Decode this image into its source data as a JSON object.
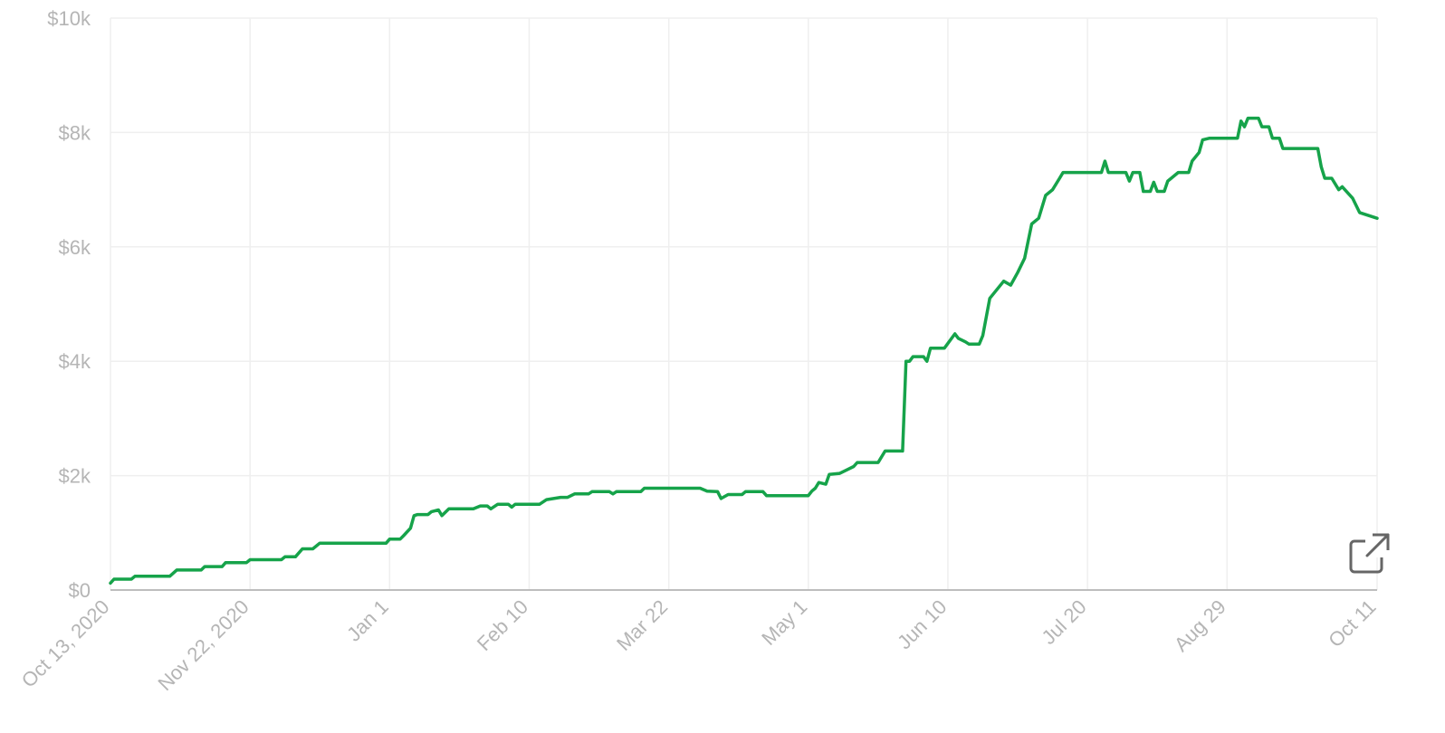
{
  "colors": {
    "line": "#16a34a",
    "grid": "#efefef",
    "axis": "#bdbdbd",
    "tick_text": "#b5b5b5",
    "icon": "#666666"
  },
  "icons": {
    "expand": "external-link-icon"
  },
  "chart_data": {
    "type": "line",
    "title": "",
    "xlabel": "",
    "ylabel": "",
    "x_domain": [
      "2020-10-13",
      "2021-10-11"
    ],
    "ylim": [
      0,
      10000
    ],
    "y_ticks": [
      {
        "value": 0,
        "label": "$0"
      },
      {
        "value": 2000,
        "label": "$2k"
      },
      {
        "value": 4000,
        "label": "$4k"
      },
      {
        "value": 6000,
        "label": "$6k"
      },
      {
        "value": 8000,
        "label": "$8k"
      },
      {
        "value": 10000,
        "label": "$10k"
      }
    ],
    "x_ticks": [
      {
        "date": "2020-10-13",
        "label": "Oct 13, 2020"
      },
      {
        "date": "2020-11-22",
        "label": "Nov 22, 2020"
      },
      {
        "date": "2021-01-01",
        "label": "Jan 1"
      },
      {
        "date": "2021-02-10",
        "label": "Feb 10"
      },
      {
        "date": "2021-03-22",
        "label": "Mar 22"
      },
      {
        "date": "2021-05-01",
        "label": "May 1"
      },
      {
        "date": "2021-06-10",
        "label": "Jun 10"
      },
      {
        "date": "2021-07-20",
        "label": "Jul 20"
      },
      {
        "date": "2021-08-29",
        "label": "Aug 29"
      },
      {
        "date": "2021-10-11",
        "label": "Oct 11"
      }
    ],
    "grid": true,
    "legend": "none",
    "series": [
      {
        "points": [
          [
            "2020-10-13",
            120
          ],
          [
            "2020-10-14",
            190
          ],
          [
            "2020-10-19",
            190
          ],
          [
            "2020-10-20",
            240
          ],
          [
            "2020-10-30",
            240
          ],
          [
            "2020-11-01",
            350
          ],
          [
            "2020-11-08",
            350
          ],
          [
            "2020-11-09",
            410
          ],
          [
            "2020-11-14",
            410
          ],
          [
            "2020-11-15",
            480
          ],
          [
            "2020-11-21",
            480
          ],
          [
            "2020-11-22",
            530
          ],
          [
            "2020-12-01",
            530
          ],
          [
            "2020-12-02",
            580
          ],
          [
            "2020-12-05",
            580
          ],
          [
            "2020-12-07",
            720
          ],
          [
            "2020-12-10",
            720
          ],
          [
            "2020-12-12",
            820
          ],
          [
            "2020-12-31",
            820
          ],
          [
            "2021-01-01",
            890
          ],
          [
            "2021-01-04",
            890
          ],
          [
            "2021-01-05",
            950
          ],
          [
            "2021-01-07",
            1080
          ],
          [
            "2021-01-08",
            1300
          ],
          [
            "2021-01-09",
            1320
          ],
          [
            "2021-01-12",
            1320
          ],
          [
            "2021-01-13",
            1370
          ],
          [
            "2021-01-15",
            1400
          ],
          [
            "2021-01-16",
            1300
          ],
          [
            "2021-01-18",
            1420
          ],
          [
            "2021-01-25",
            1420
          ],
          [
            "2021-01-27",
            1470
          ],
          [
            "2021-01-29",
            1470
          ],
          [
            "2021-01-30",
            1420
          ],
          [
            "2021-02-01",
            1500
          ],
          [
            "2021-02-04",
            1500
          ],
          [
            "2021-02-05",
            1450
          ],
          [
            "2021-02-06",
            1500
          ],
          [
            "2021-02-13",
            1500
          ],
          [
            "2021-02-15",
            1580
          ],
          [
            "2021-02-19",
            1620
          ],
          [
            "2021-02-21",
            1620
          ],
          [
            "2021-02-23",
            1680
          ],
          [
            "2021-02-27",
            1680
          ],
          [
            "2021-02-28",
            1720
          ],
          [
            "2021-03-05",
            1720
          ],
          [
            "2021-03-06",
            1680
          ],
          [
            "2021-03-07",
            1720
          ],
          [
            "2021-03-14",
            1720
          ],
          [
            "2021-03-15",
            1780
          ],
          [
            "2021-03-31",
            1780
          ],
          [
            "2021-04-02",
            1730
          ],
          [
            "2021-04-05",
            1720
          ],
          [
            "2021-04-06",
            1600
          ],
          [
            "2021-04-08",
            1670
          ],
          [
            "2021-04-12",
            1670
          ],
          [
            "2021-04-13",
            1720
          ],
          [
            "2021-04-18",
            1720
          ],
          [
            "2021-04-19",
            1650
          ],
          [
            "2021-05-01",
            1650
          ],
          [
            "2021-05-02",
            1730
          ],
          [
            "2021-05-03",
            1780
          ],
          [
            "2021-05-04",
            1880
          ],
          [
            "2021-05-06",
            1850
          ],
          [
            "2021-05-07",
            2020
          ],
          [
            "2021-05-10",
            2040
          ],
          [
            "2021-05-12",
            2100
          ],
          [
            "2021-05-14",
            2160
          ],
          [
            "2021-05-15",
            2230
          ],
          [
            "2021-05-21",
            2230
          ],
          [
            "2021-05-23",
            2430
          ],
          [
            "2021-05-28",
            2430
          ],
          [
            "2021-05-29",
            4000
          ],
          [
            "2021-05-30",
            4000
          ],
          [
            "2021-05-31",
            4080
          ],
          [
            "2021-06-03",
            4080
          ],
          [
            "2021-06-04",
            4000
          ],
          [
            "2021-06-05",
            4230
          ],
          [
            "2021-06-09",
            4230
          ],
          [
            "2021-06-12",
            4480
          ],
          [
            "2021-06-13",
            4400
          ],
          [
            "2021-06-15",
            4340
          ],
          [
            "2021-06-16",
            4300
          ],
          [
            "2021-06-19",
            4300
          ],
          [
            "2021-06-20",
            4450
          ],
          [
            "2021-06-22",
            5100
          ],
          [
            "2021-06-24",
            5250
          ],
          [
            "2021-06-26",
            5400
          ],
          [
            "2021-06-28",
            5330
          ],
          [
            "2021-06-30",
            5550
          ],
          [
            "2021-07-02",
            5800
          ],
          [
            "2021-07-04",
            6400
          ],
          [
            "2021-07-06",
            6500
          ],
          [
            "2021-07-08",
            6900
          ],
          [
            "2021-07-10",
            7000
          ],
          [
            "2021-07-12",
            7200
          ],
          [
            "2021-07-13",
            7300
          ],
          [
            "2021-07-24",
            7300
          ],
          [
            "2021-07-25",
            7500
          ],
          [
            "2021-07-26",
            7300
          ],
          [
            "2021-07-31",
            7300
          ],
          [
            "2021-08-01",
            7150
          ],
          [
            "2021-08-02",
            7300
          ],
          [
            "2021-08-04",
            7300
          ],
          [
            "2021-08-05",
            6970
          ],
          [
            "2021-08-07",
            6970
          ],
          [
            "2021-08-08",
            7130
          ],
          [
            "2021-08-09",
            6970
          ],
          [
            "2021-08-11",
            6970
          ],
          [
            "2021-08-12",
            7150
          ],
          [
            "2021-08-15",
            7300
          ],
          [
            "2021-08-18",
            7300
          ],
          [
            "2021-08-19",
            7500
          ],
          [
            "2021-08-21",
            7650
          ],
          [
            "2021-08-22",
            7870
          ],
          [
            "2021-08-24",
            7900
          ],
          [
            "2021-09-01",
            7900
          ],
          [
            "2021-09-02",
            8200
          ],
          [
            "2021-09-03",
            8100
          ],
          [
            "2021-09-04",
            8250
          ],
          [
            "2021-09-07",
            8250
          ],
          [
            "2021-09-08",
            8100
          ],
          [
            "2021-09-10",
            8100
          ],
          [
            "2021-09-11",
            7900
          ],
          [
            "2021-09-13",
            7900
          ],
          [
            "2021-09-14",
            7720
          ],
          [
            "2021-09-24",
            7720
          ],
          [
            "2021-09-25",
            7400
          ],
          [
            "2021-09-26",
            7200
          ],
          [
            "2021-09-28",
            7200
          ],
          [
            "2021-09-30",
            7000
          ],
          [
            "2021-10-01",
            7050
          ],
          [
            "2021-10-04",
            6850
          ],
          [
            "2021-10-06",
            6600
          ],
          [
            "2021-10-11",
            6500
          ]
        ]
      }
    ]
  }
}
